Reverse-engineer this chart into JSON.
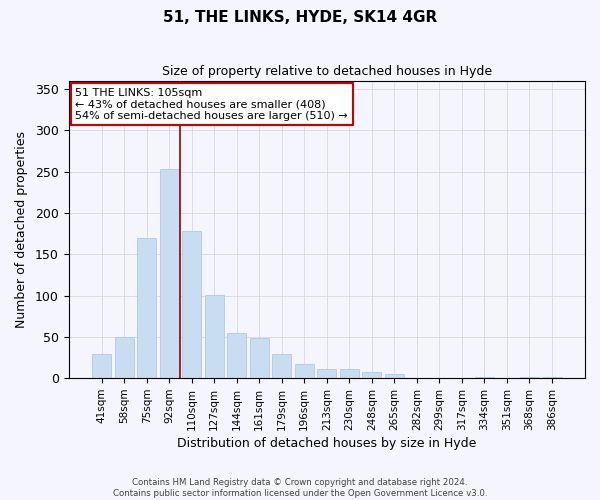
{
  "title": "51, THE LINKS, HYDE, SK14 4GR",
  "subtitle": "Size of property relative to detached houses in Hyde",
  "xlabel": "Distribution of detached houses by size in Hyde",
  "ylabel": "Number of detached properties",
  "bar_color": "#c8ddf2",
  "bar_edge_color": "#a8c4e0",
  "categories": [
    "41sqm",
    "58sqm",
    "75sqm",
    "92sqm",
    "110sqm",
    "127sqm",
    "144sqm",
    "161sqm",
    "179sqm",
    "196sqm",
    "213sqm",
    "230sqm",
    "248sqm",
    "265sqm",
    "282sqm",
    "299sqm",
    "317sqm",
    "334sqm",
    "351sqm",
    "368sqm",
    "386sqm"
  ],
  "values": [
    29,
    50,
    170,
    253,
    178,
    101,
    55,
    49,
    29,
    17,
    11,
    11,
    8,
    5,
    0,
    0,
    0,
    2,
    0,
    2,
    1
  ],
  "ylim": [
    0,
    360
  ],
  "yticks": [
    0,
    50,
    100,
    150,
    200,
    250,
    300,
    350
  ],
  "vline_x_index": 3.5,
  "vline_color": "#990000",
  "annotation_title": "51 THE LINKS: 105sqm",
  "annotation_line1": "← 43% of detached houses are smaller (408)",
  "annotation_line2": "54% of semi-detached houses are larger (510) →",
  "annotation_box_facecolor": "#ffffff",
  "annotation_box_edgecolor": "#cc0000",
  "footer1": "Contains HM Land Registry data © Crown copyright and database right 2024.",
  "footer2": "Contains public sector information licensed under the Open Government Licence v3.0.",
  "background_color": "#f5f5ff",
  "grid_color": "#d0d0e0"
}
